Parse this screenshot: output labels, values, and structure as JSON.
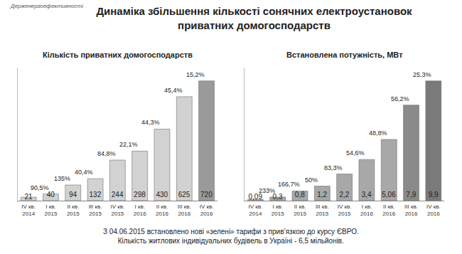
{
  "title": "Динаміка збільшення кількості сонячних електроустановок\nприватних домогосподарств",
  "logo": "Держенергоефективності",
  "footer": [
    "З 04.06.2015 встановлено нові «зелені» тарифи з прив’язкою до курсу ЄВРО.",
    "Кількість житлових індивідуальних будівель в Україні - 6,5 мільйонів."
  ],
  "chart_data": [
    {
      "type": "bar",
      "title": "Кількість приватних домогосподарств",
      "categories": [
        "IV кв.\n2014",
        "I кв.\n2015",
        "II кв.\n2015",
        "III кв.\n2015",
        "IV кв.\n2015",
        "I кв.\n2016",
        "II кв.\n2016",
        "III кв.\n2016",
        "IV кв.\n2016"
      ],
      "values": [
        21,
        40,
        94,
        132,
        244,
        298,
        430,
        625,
        720
      ],
      "colors": [
        "#d2d2d2",
        "#d2d2d2",
        "#d2d2d2",
        "#d2d2d2",
        "#d2d2d2",
        "#d2d2d2",
        "#d2d2d2",
        "#d2d2d2",
        "#9a9a9a"
      ],
      "annotations": [
        "90,5%",
        "135%",
        "40,4%",
        "84,8%",
        "22,1%",
        "44,3%",
        "45,4%",
        "15,2%"
      ],
      "ylim": [
        0,
        800
      ],
      "yticks": [],
      "tick_labels": "x",
      "data_labels": true
    },
    {
      "type": "bar",
      "title": "Встановлена потужність, МВт",
      "categories": [
        "IV кв.\n2014",
        "I кв.\n2015",
        "II кв.\n2015",
        "III кв.\n2015",
        "IV кв.\n2015",
        "I кв.\n2016",
        "II кв.\n2016",
        "III кв.\n2016",
        "IV кв.\n2016"
      ],
      "values": [
        0.09,
        0.3,
        0.8,
        1.2,
        2.2,
        3.4,
        5.06,
        7.9,
        9.9
      ],
      "value_labels": [
        "0,09",
        "0,3",
        "0,8",
        "1,2",
        "2,2",
        "3,4",
        "5,06",
        "7,9",
        "9,9"
      ],
      "colors": [
        "#a8a8a8",
        "#a8a8a8",
        "#a8a8a8",
        "#a8a8a8",
        "#a8a8a8",
        "#a8a8a8",
        "#a8a8a8",
        "#8a8a8a",
        "#7a7a7a"
      ],
      "annotations": [
        "233%",
        "166,7%",
        "50%",
        "83,3%",
        "54,6%",
        "48,8%",
        "56,2%",
        "25,3%"
      ],
      "ylim": [
        0,
        11
      ],
      "yticks": [],
      "tick_labels": "x",
      "data_labels": true
    }
  ]
}
